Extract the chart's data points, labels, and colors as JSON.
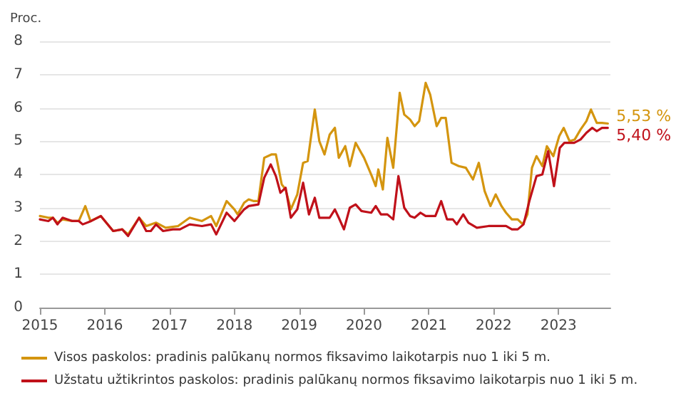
{
  "chart_data": {
    "type": "line",
    "ylabel": "Proc.",
    "xlim": [
      2015,
      2023.8
    ],
    "xticks": [
      2015,
      2016,
      2017,
      2018,
      2019,
      2020,
      2021,
      2022,
      2023
    ],
    "ylim": [
      0,
      8
    ],
    "yticks": [
      0,
      1,
      2,
      3,
      4,
      5,
      6,
      7,
      8
    ],
    "grid": "y",
    "legend": "bottom",
    "marker": "none",
    "line_style": "solid",
    "series": [
      {
        "name": "Visos paskolos: pradinis palūkanų normos fiksavimo laikotarpis nuo 1 iki 5 m.",
        "color": "#d4950f",
        "x": [
          2015.0,
          2015.13,
          2015.2,
          2015.27,
          2015.35,
          2015.5,
          2015.6,
          2015.7,
          2015.78,
          2015.94,
          2016.13,
          2016.27,
          2016.36,
          2016.53,
          2016.64,
          2016.79,
          2016.94,
          2017.13,
          2017.31,
          2017.5,
          2017.64,
          2017.72,
          2017.88,
          2018.0,
          2018.05,
          2018.15,
          2018.22,
          2018.3,
          2018.37,
          2018.46,
          2018.57,
          2018.64,
          2018.73,
          2018.79,
          2018.87,
          2018.97,
          2019.06,
          2019.13,
          2019.24,
          2019.31,
          2019.39,
          2019.47,
          2019.55,
          2019.61,
          2019.71,
          2019.78,
          2019.87,
          2020.0,
          2020.12,
          2020.18,
          2020.22,
          2020.29,
          2020.36,
          2020.45,
          2020.55,
          2020.62,
          2020.71,
          2020.78,
          2020.85,
          2020.95,
          2021.02,
          2021.12,
          2021.19,
          2021.26,
          2021.35,
          2021.46,
          2021.57,
          2021.68,
          2021.77,
          2021.86,
          2021.95,
          2022.03,
          2022.12,
          2022.19,
          2022.28,
          2022.37,
          2022.45,
          2022.52,
          2022.59,
          2022.66,
          2022.75,
          2022.82,
          2022.92,
          2023.01,
          2023.08,
          2023.17,
          2023.25,
          2023.34,
          2023.43,
          2023.5,
          2023.59,
          2023.67,
          2023.76
        ],
        "values": [
          2.75,
          2.7,
          2.7,
          2.55,
          2.65,
          2.6,
          2.6,
          3.05,
          2.6,
          2.75,
          2.3,
          2.35,
          2.2,
          2.7,
          2.45,
          2.55,
          2.4,
          2.45,
          2.7,
          2.6,
          2.75,
          2.45,
          3.2,
          2.95,
          2.8,
          3.15,
          3.25,
          3.2,
          3.2,
          4.5,
          4.6,
          4.6,
          3.7,
          3.55,
          2.95,
          3.4,
          4.35,
          4.4,
          5.95,
          5.0,
          4.6,
          5.2,
          5.4,
          4.5,
          4.85,
          4.25,
          4.95,
          4.5,
          3.95,
          3.65,
          4.15,
          3.55,
          5.1,
          4.2,
          6.45,
          5.8,
          5.65,
          5.45,
          5.6,
          6.75,
          6.4,
          5.45,
          5.7,
          5.7,
          4.35,
          4.25,
          4.2,
          3.85,
          4.35,
          3.5,
          3.05,
          3.4,
          3.05,
          2.85,
          2.65,
          2.65,
          2.5,
          2.8,
          4.2,
          4.55,
          4.25,
          4.85,
          4.55,
          5.15,
          5.4,
          5.0,
          5.05,
          5.35,
          5.6,
          5.95,
          5.55,
          5.55,
          5.53
        ]
      },
      {
        "name": "Užstatu užtikrintos paskolos: pradinis palūkanų normos fiksavimo laikotarpis nuo 1 iki 5 m.",
        "color": "#c0111a",
        "x": [
          2015.0,
          2015.13,
          2015.2,
          2015.27,
          2015.35,
          2015.5,
          2015.6,
          2015.66,
          2015.79,
          2015.94,
          2016.13,
          2016.27,
          2016.36,
          2016.53,
          2016.64,
          2016.71,
          2016.79,
          2016.9,
          2017.05,
          2017.16,
          2017.31,
          2017.5,
          2017.64,
          2017.72,
          2017.88,
          2018.0,
          2018.15,
          2018.22,
          2018.37,
          2018.46,
          2018.56,
          2018.64,
          2018.71,
          2018.79,
          2018.87,
          2018.97,
          2019.06,
          2019.15,
          2019.24,
          2019.31,
          2019.47,
          2019.55,
          2019.61,
          2019.69,
          2019.78,
          2019.87,
          2019.96,
          2020.11,
          2020.18,
          2020.26,
          2020.36,
          2020.45,
          2020.53,
          2020.62,
          2020.71,
          2020.78,
          2020.87,
          2020.95,
          2021.1,
          2021.19,
          2021.28,
          2021.37,
          2021.43,
          2021.53,
          2021.61,
          2021.74,
          2021.92,
          2022.11,
          2022.19,
          2022.28,
          2022.37,
          2022.46,
          2022.55,
          2022.66,
          2022.75,
          2022.84,
          2022.93,
          2023.02,
          2023.09,
          2023.24,
          2023.34,
          2023.43,
          2023.52,
          2023.59,
          2023.67,
          2023.76
        ],
        "values": [
          2.65,
          2.6,
          2.7,
          2.5,
          2.7,
          2.6,
          2.6,
          2.5,
          2.6,
          2.75,
          2.3,
          2.35,
          2.15,
          2.7,
          2.3,
          2.3,
          2.5,
          2.3,
          2.35,
          2.35,
          2.5,
          2.45,
          2.5,
          2.2,
          2.85,
          2.6,
          2.95,
          3.05,
          3.1,
          3.9,
          4.3,
          3.95,
          3.45,
          3.6,
          2.7,
          2.95,
          3.75,
          2.8,
          3.3,
          2.7,
          2.7,
          2.95,
          2.7,
          2.35,
          3.0,
          3.1,
          2.9,
          2.85,
          3.05,
          2.8,
          2.8,
          2.65,
          3.95,
          3.0,
          2.75,
          2.7,
          2.85,
          2.75,
          2.75,
          3.2,
          2.65,
          2.65,
          2.5,
          2.8,
          2.55,
          2.4,
          2.45,
          2.45,
          2.45,
          2.35,
          2.35,
          2.5,
          3.2,
          3.95,
          4.0,
          4.7,
          3.65,
          4.8,
          4.95,
          4.95,
          5.05,
          5.25,
          5.4,
          5.3,
          5.4,
          5.4
        ]
      }
    ],
    "annotations": [
      {
        "text": "5,53 %",
        "x": 2023.76,
        "y": 5.53
      },
      {
        "text": "5,40 %",
        "x": 2023.76,
        "y": 5.4
      }
    ]
  }
}
